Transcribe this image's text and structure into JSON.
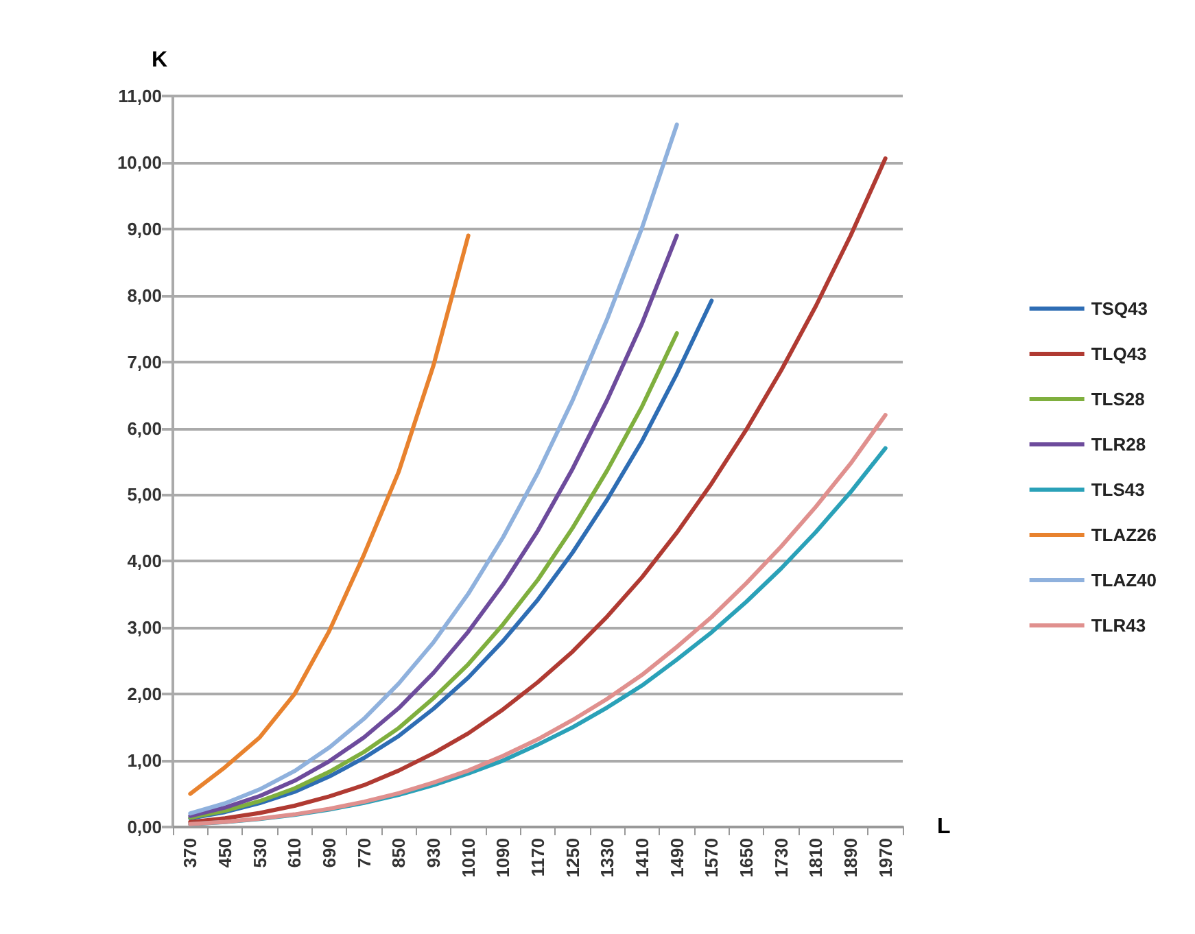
{
  "chart_data": {
    "type": "line",
    "xlabel": "L",
    "ylabel": "K",
    "categories": [
      "370",
      "450",
      "530",
      "610",
      "690",
      "770",
      "850",
      "930",
      "1010",
      "1090",
      "1170",
      "1250",
      "1330",
      "1410",
      "1490",
      "1570",
      "1650",
      "1730",
      "1810",
      "1890",
      "1970"
    ],
    "series": [
      {
        "name": "TSQ43",
        "color": "#2e6db4",
        "values": [
          0.13,
          0.225,
          0.36,
          0.53,
          0.76,
          1.04,
          1.37,
          1.78,
          2.25,
          2.8,
          3.42,
          4.13,
          4.93,
          5.81,
          6.82,
          7.92,
          null,
          null,
          null,
          null,
          null
        ]
      },
      {
        "name": "TLQ43",
        "color": "#b03a32",
        "values": [
          0.074,
          0.131,
          0.212,
          0.32,
          0.46,
          0.63,
          0.85,
          1.11,
          1.41,
          1.77,
          2.18,
          2.64,
          3.17,
          3.76,
          4.43,
          5.17,
          5.98,
          6.87,
          7.84,
          8.9,
          10.06
        ]
      },
      {
        "name": "TLS28",
        "color": "#7faf3e",
        "values": [
          0.14,
          0.245,
          0.39,
          0.58,
          0.83,
          1.13,
          1.49,
          1.94,
          2.45,
          3.05,
          3.72,
          4.5,
          5.37,
          6.33,
          7.43,
          null,
          null,
          null,
          null,
          null,
          null
        ]
      },
      {
        "name": "TLR28",
        "color": "#6d4b9c",
        "values": [
          0.168,
          0.293,
          0.467,
          0.696,
          0.99,
          1.35,
          1.79,
          2.32,
          2.94,
          3.65,
          4.46,
          5.39,
          6.43,
          7.58,
          8.9,
          null,
          null,
          null,
          null,
          null,
          null
        ]
      },
      {
        "name": "TLS43",
        "color": "#2aa1b8",
        "values": [
          0.042,
          0.075,
          0.122,
          0.183,
          0.263,
          0.363,
          0.485,
          0.631,
          0.805,
          1.0,
          1.24,
          1.5,
          1.8,
          2.13,
          2.52,
          2.93,
          3.39,
          3.89,
          4.44,
          5.04,
          5.7
        ]
      },
      {
        "name": "TLAZ26",
        "color": "#e8822e",
        "values": [
          0.5,
          0.9,
          1.35,
          2.0,
          2.95,
          4.1,
          5.35,
          6.95,
          8.9,
          null,
          null,
          null,
          null,
          null,
          null,
          null,
          null,
          null,
          null,
          null,
          null
        ]
      },
      {
        "name": "TLAZ40",
        "color": "#8fb1dd",
        "values": [
          0.205,
          0.356,
          0.567,
          0.842,
          1.196,
          1.63,
          2.16,
          2.78,
          3.51,
          4.36,
          5.33,
          6.42,
          7.65,
          9.02,
          10.57,
          null,
          null,
          null,
          null,
          null,
          null
        ]
      },
      {
        "name": "TLR43",
        "color": "#e0908e",
        "values": [
          0.043,
          0.077,
          0.126,
          0.19,
          0.275,
          0.38,
          0.51,
          0.67,
          0.85,
          1.07,
          1.32,
          1.61,
          1.93,
          2.29,
          2.71,
          3.16,
          3.67,
          4.22,
          4.82,
          5.47,
          6.2
        ]
      }
    ],
    "ylim": [
      0,
      11
    ],
    "yticks": [
      {
        "value": 0,
        "label": "0,00"
      },
      {
        "value": 1,
        "label": "1,00"
      },
      {
        "value": 2,
        "label": "2,00"
      },
      {
        "value": 3,
        "label": "3,00"
      },
      {
        "value": 4,
        "label": "4,00"
      },
      {
        "value": 5,
        "label": "5,00"
      },
      {
        "value": 6,
        "label": "6,00"
      },
      {
        "value": 7,
        "label": "7,00"
      },
      {
        "value": 8,
        "label": "8,00"
      },
      {
        "value": 9,
        "label": "9,00"
      },
      {
        "value": 10,
        "label": "10,00"
      },
      {
        "value": 11,
        "label": "11,00"
      }
    ],
    "grid": "y",
    "legend": "right",
    "marker": "none",
    "line_style": "solid"
  }
}
